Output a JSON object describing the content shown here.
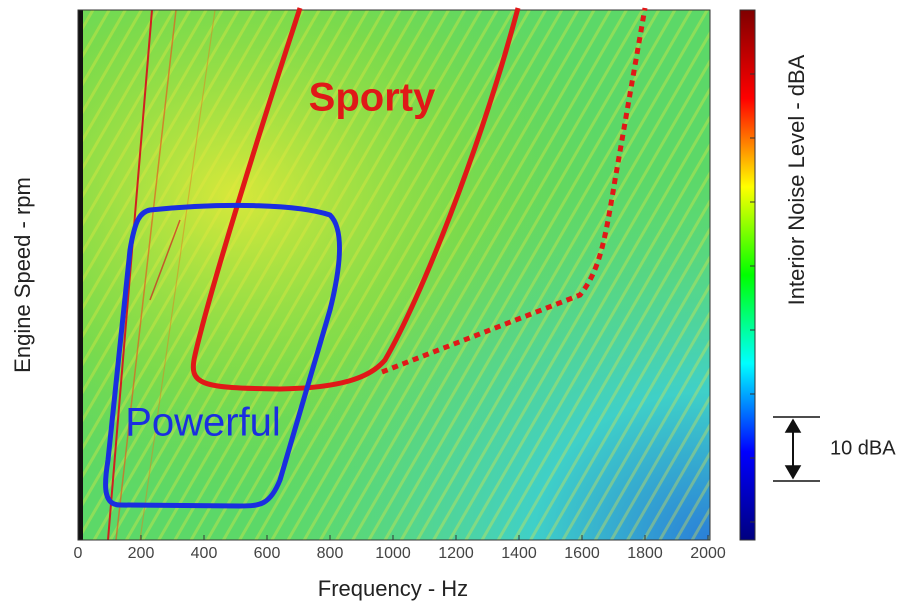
{
  "chart_data": {
    "type": "spectrogram",
    "xlabel": "Frequency - Hz",
    "ylabel": "Engine Speed - rpm",
    "colorbar_label": "Interior Noise Level - dBA",
    "colormap": [
      "#7f0000",
      "#ff0000",
      "#ffff00",
      "#00ff00",
      "#00ffff",
      "#0000ff",
      "#00007f"
    ],
    "xlim": [
      0,
      2000
    ],
    "xticks": [
      0,
      200,
      400,
      600,
      800,
      1000,
      1200,
      1400,
      1600,
      1800,
      2000
    ],
    "annotations": [
      "Sporty",
      "Powerful",
      "10 dBA"
    ]
  }
}
